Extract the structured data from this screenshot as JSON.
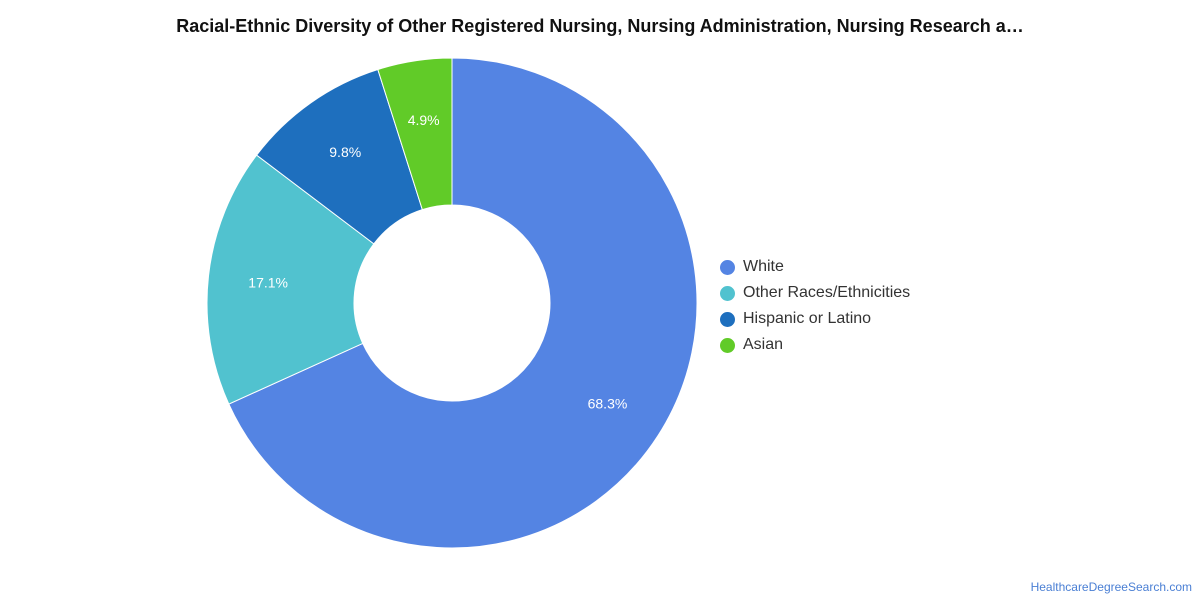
{
  "chart_data": {
    "type": "pie",
    "title": "Racial-Ethnic Diversity of Other Registered Nursing, Nursing Administration, Nursing Research a…",
    "donut": true,
    "categories": [
      "White",
      "Other Races/Ethnicities",
      "Hispanic or Latino",
      "Asian"
    ],
    "values": [
      68.3,
      17.1,
      9.8,
      4.9
    ],
    "value_labels": [
      "68.3%",
      "17.1%",
      "9.8%",
      "4.9%"
    ],
    "colors": [
      "#5484e3",
      "#51c2cf",
      "#1e6fbe",
      "#61cb28"
    ],
    "legend_position": "right"
  },
  "footer": {
    "credit": "HealthcareDegreeSearch.com"
  }
}
